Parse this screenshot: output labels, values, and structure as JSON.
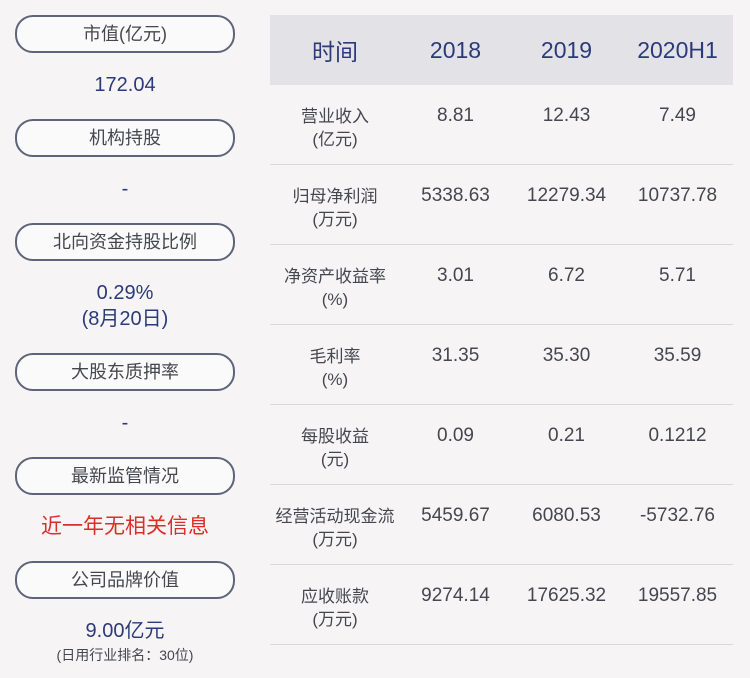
{
  "left": {
    "market_cap_label": "市值(亿元)",
    "market_cap_value": "172.04",
    "institution_label": "机构持股",
    "institution_value": "-",
    "northbound_label": "北向资金持股比例",
    "northbound_value": "0.29%",
    "northbound_date": "(8月20日)",
    "pledge_label": "大股东质押率",
    "pledge_value": "-",
    "regulation_label": "最新监管情况",
    "regulation_value": "近一年无相关信息",
    "brand_label": "公司品牌价值",
    "brand_value": "9.00亿元",
    "brand_rank": "(日用行业排名：30位)"
  },
  "table": {
    "headers": [
      "时间",
      "2018",
      "2019",
      "2020H1"
    ],
    "rows": [
      {
        "label": "营业收入",
        "unit": "(亿元)",
        "values": [
          "8.81",
          "12.43",
          "7.49"
        ]
      },
      {
        "label": "归母净利润",
        "unit": "(万元)",
        "values": [
          "5338.63",
          "12279.34",
          "10737.78"
        ]
      },
      {
        "label": "净资产收益率",
        "unit": "(%)",
        "values": [
          "3.01",
          "6.72",
          "5.71"
        ]
      },
      {
        "label": "毛利率",
        "unit": "(%)",
        "values": [
          "31.35",
          "35.30",
          "35.59"
        ]
      },
      {
        "label": "每股收益",
        "unit": "(元)",
        "values": [
          "0.09",
          "0.21",
          "0.1212"
        ]
      },
      {
        "label": "经营活动现金流",
        "unit": "(万元)",
        "values": [
          "5459.67",
          "6080.53",
          "-5732.76"
        ]
      },
      {
        "label": "应收账款",
        "unit": "(万元)",
        "values": [
          "9274.14",
          "17625.32",
          "19557.85"
        ]
      }
    ]
  }
}
